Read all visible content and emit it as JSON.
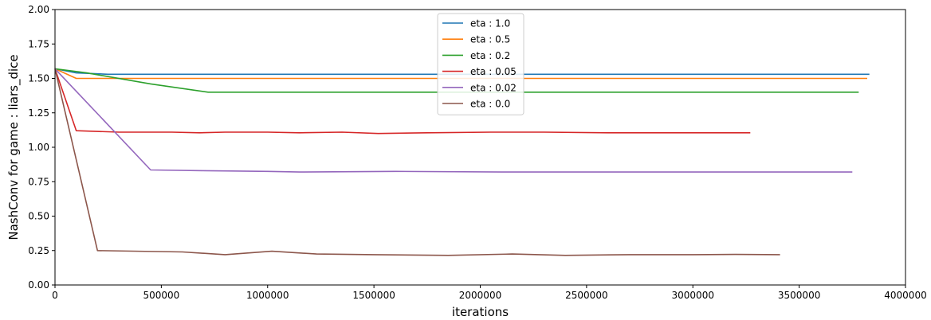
{
  "chart_data": {
    "type": "line",
    "title": "",
    "xlabel": "iterations",
    "ylabel": "NashConv for game : liars_dice",
    "xlim": [
      0,
      4000000
    ],
    "ylim": [
      0.0,
      2.0
    ],
    "x_ticks": [
      0,
      500000,
      1000000,
      1500000,
      2000000,
      2500000,
      3000000,
      3500000,
      4000000
    ],
    "x_tick_labels": [
      "0",
      "500000",
      "1000000",
      "1500000",
      "2000000",
      "2500000",
      "3000000",
      "3500000",
      "4000000"
    ],
    "y_ticks": [
      0.0,
      0.25,
      0.5,
      0.75,
      1.0,
      1.25,
      1.5,
      1.75,
      2.0
    ],
    "y_tick_labels": [
      "0.00",
      "0.25",
      "0.50",
      "0.75",
      "1.00",
      "1.25",
      "1.50",
      "1.75",
      "2.00"
    ],
    "grid": false,
    "legend_position": "top-center",
    "series": [
      {
        "name": "eta : 1.0",
        "color": "#1f77b4",
        "x": [
          0,
          100000,
          250000,
          500000,
          1000000,
          1500000,
          2000000,
          2500000,
          3000000,
          3500000,
          3830000
        ],
        "y": [
          1.57,
          1.54,
          1.53,
          1.53,
          1.53,
          1.53,
          1.53,
          1.53,
          1.53,
          1.53,
          1.53
        ]
      },
      {
        "name": "eta : 0.5",
        "color": "#ff7f0e",
        "x": [
          0,
          100000,
          500000,
          1000000,
          1500000,
          2000000,
          2500000,
          3000000,
          3500000,
          3820000
        ],
        "y": [
          1.57,
          1.5,
          1.5,
          1.5,
          1.5,
          1.5,
          1.5,
          1.5,
          1.5,
          1.5
        ]
      },
      {
        "name": "eta : 0.2",
        "color": "#2ca02c",
        "x": [
          0,
          150000,
          450000,
          720000,
          1000000,
          1300000,
          1600000,
          2000000,
          2400000,
          2800000,
          3200000,
          3600000,
          3780000
        ],
        "y": [
          1.57,
          1.54,
          1.46,
          1.4,
          1.4,
          1.4,
          1.4,
          1.4,
          1.4,
          1.4,
          1.4,
          1.4,
          1.4
        ]
      },
      {
        "name": "eta : 0.05",
        "color": "#d62728",
        "x": [
          0,
          100000,
          300000,
          550000,
          680000,
          800000,
          1000000,
          1150000,
          1350000,
          1520000,
          1750000,
          2050000,
          2300000,
          2600000,
          2900000,
          3270000
        ],
        "y": [
          1.57,
          1.12,
          1.11,
          1.11,
          1.105,
          1.11,
          1.11,
          1.105,
          1.11,
          1.1,
          1.105,
          1.11,
          1.11,
          1.105,
          1.105,
          1.105
        ]
      },
      {
        "name": "eta : 0.02",
        "color": "#9467bd",
        "x": [
          0,
          450000,
          700000,
          1000000,
          1150000,
          1600000,
          2100000,
          2500000,
          2800000,
          3200000,
          3450000,
          3750000
        ],
        "y": [
          1.57,
          0.835,
          0.83,
          0.825,
          0.82,
          0.825,
          0.82,
          0.82,
          0.82,
          0.82,
          0.82,
          0.82
        ]
      },
      {
        "name": "eta : 0.0",
        "color": "#8c564b",
        "x": [
          0,
          200000,
          600000,
          800000,
          1020000,
          1230000,
          1500000,
          1850000,
          2150000,
          2400000,
          2700000,
          3000000,
          3200000,
          3410000
        ],
        "y": [
          1.57,
          0.25,
          0.24,
          0.22,
          0.245,
          0.225,
          0.22,
          0.215,
          0.225,
          0.215,
          0.22,
          0.22,
          0.222,
          0.22
        ]
      }
    ]
  }
}
